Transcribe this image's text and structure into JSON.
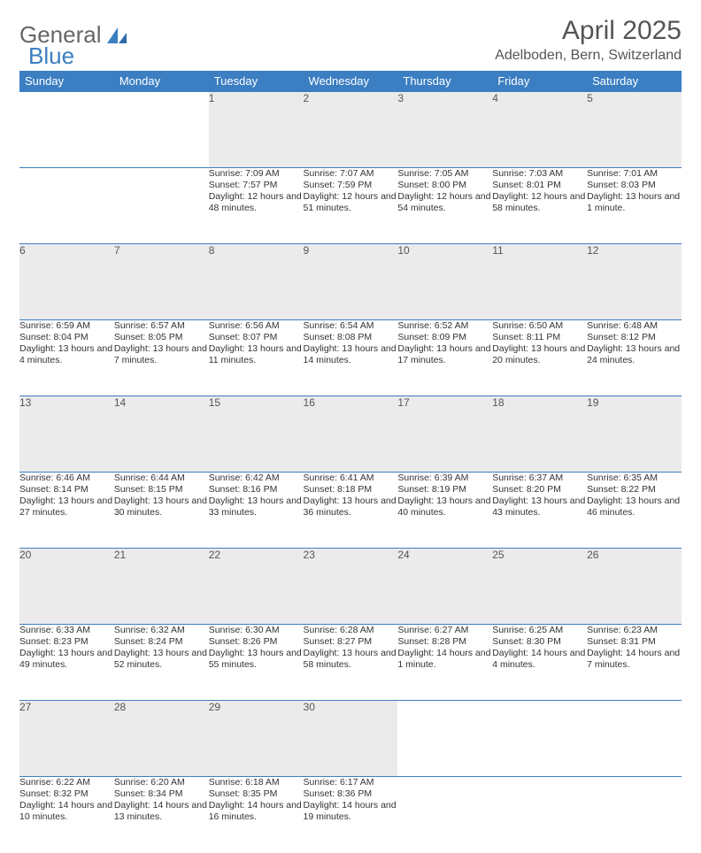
{
  "logo": {
    "text1": "General",
    "text2": "Blue"
  },
  "title": "April 2025",
  "location": "Adelboden, Bern, Switzerland",
  "colors": {
    "header_bg": "#3b7ec2",
    "header_text": "#ffffff",
    "daynum_bg": "#ebebeb",
    "border": "#3b7ec2",
    "title_text": "#555555",
    "body_text": "#333333"
  },
  "day_headers": [
    "Sunday",
    "Monday",
    "Tuesday",
    "Wednesday",
    "Thursday",
    "Friday",
    "Saturday"
  ],
  "weeks": [
    [
      null,
      null,
      {
        "n": "1",
        "sunrise": "7:09 AM",
        "sunset": "7:57 PM",
        "daylight": "12 hours and 48 minutes."
      },
      {
        "n": "2",
        "sunrise": "7:07 AM",
        "sunset": "7:59 PM",
        "daylight": "12 hours and 51 minutes."
      },
      {
        "n": "3",
        "sunrise": "7:05 AM",
        "sunset": "8:00 PM",
        "daylight": "12 hours and 54 minutes."
      },
      {
        "n": "4",
        "sunrise": "7:03 AM",
        "sunset": "8:01 PM",
        "daylight": "12 hours and 58 minutes."
      },
      {
        "n": "5",
        "sunrise": "7:01 AM",
        "sunset": "8:03 PM",
        "daylight": "13 hours and 1 minute."
      }
    ],
    [
      {
        "n": "6",
        "sunrise": "6:59 AM",
        "sunset": "8:04 PM",
        "daylight": "13 hours and 4 minutes."
      },
      {
        "n": "7",
        "sunrise": "6:57 AM",
        "sunset": "8:05 PM",
        "daylight": "13 hours and 7 minutes."
      },
      {
        "n": "8",
        "sunrise": "6:56 AM",
        "sunset": "8:07 PM",
        "daylight": "13 hours and 11 minutes."
      },
      {
        "n": "9",
        "sunrise": "6:54 AM",
        "sunset": "8:08 PM",
        "daylight": "13 hours and 14 minutes."
      },
      {
        "n": "10",
        "sunrise": "6:52 AM",
        "sunset": "8:09 PM",
        "daylight": "13 hours and 17 minutes."
      },
      {
        "n": "11",
        "sunrise": "6:50 AM",
        "sunset": "8:11 PM",
        "daylight": "13 hours and 20 minutes."
      },
      {
        "n": "12",
        "sunrise": "6:48 AM",
        "sunset": "8:12 PM",
        "daylight": "13 hours and 24 minutes."
      }
    ],
    [
      {
        "n": "13",
        "sunrise": "6:46 AM",
        "sunset": "8:14 PM",
        "daylight": "13 hours and 27 minutes."
      },
      {
        "n": "14",
        "sunrise": "6:44 AM",
        "sunset": "8:15 PM",
        "daylight": "13 hours and 30 minutes."
      },
      {
        "n": "15",
        "sunrise": "6:42 AM",
        "sunset": "8:16 PM",
        "daylight": "13 hours and 33 minutes."
      },
      {
        "n": "16",
        "sunrise": "6:41 AM",
        "sunset": "8:18 PM",
        "daylight": "13 hours and 36 minutes."
      },
      {
        "n": "17",
        "sunrise": "6:39 AM",
        "sunset": "8:19 PM",
        "daylight": "13 hours and 40 minutes."
      },
      {
        "n": "18",
        "sunrise": "6:37 AM",
        "sunset": "8:20 PM",
        "daylight": "13 hours and 43 minutes."
      },
      {
        "n": "19",
        "sunrise": "6:35 AM",
        "sunset": "8:22 PM",
        "daylight": "13 hours and 46 minutes."
      }
    ],
    [
      {
        "n": "20",
        "sunrise": "6:33 AM",
        "sunset": "8:23 PM",
        "daylight": "13 hours and 49 minutes."
      },
      {
        "n": "21",
        "sunrise": "6:32 AM",
        "sunset": "8:24 PM",
        "daylight": "13 hours and 52 minutes."
      },
      {
        "n": "22",
        "sunrise": "6:30 AM",
        "sunset": "8:26 PM",
        "daylight": "13 hours and 55 minutes."
      },
      {
        "n": "23",
        "sunrise": "6:28 AM",
        "sunset": "8:27 PM",
        "daylight": "13 hours and 58 minutes."
      },
      {
        "n": "24",
        "sunrise": "6:27 AM",
        "sunset": "8:28 PM",
        "daylight": "14 hours and 1 minute."
      },
      {
        "n": "25",
        "sunrise": "6:25 AM",
        "sunset": "8:30 PM",
        "daylight": "14 hours and 4 minutes."
      },
      {
        "n": "26",
        "sunrise": "6:23 AM",
        "sunset": "8:31 PM",
        "daylight": "14 hours and 7 minutes."
      }
    ],
    [
      {
        "n": "27",
        "sunrise": "6:22 AM",
        "sunset": "8:32 PM",
        "daylight": "14 hours and 10 minutes."
      },
      {
        "n": "28",
        "sunrise": "6:20 AM",
        "sunset": "8:34 PM",
        "daylight": "14 hours and 13 minutes."
      },
      {
        "n": "29",
        "sunrise": "6:18 AM",
        "sunset": "8:35 PM",
        "daylight": "14 hours and 16 minutes."
      },
      {
        "n": "30",
        "sunrise": "6:17 AM",
        "sunset": "8:36 PM",
        "daylight": "14 hours and 19 minutes."
      },
      null,
      null,
      null
    ]
  ],
  "labels": {
    "sunrise": "Sunrise:",
    "sunset": "Sunset:",
    "daylight": "Daylight:"
  }
}
